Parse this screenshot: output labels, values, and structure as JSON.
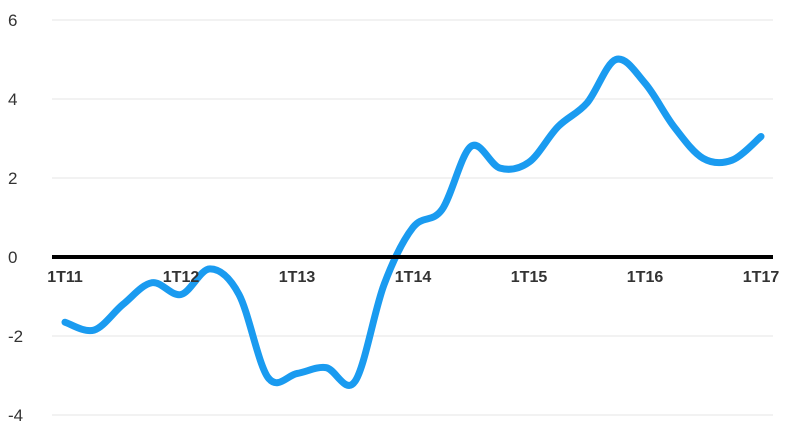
{
  "chart_data": {
    "type": "line",
    "title": "",
    "xlabel": "",
    "ylabel": "",
    "ylim": [
      -4,
      6
    ],
    "yticks": [
      6,
      4,
      2,
      0,
      -2,
      -4
    ],
    "xticks": [
      "1T11",
      "1T12",
      "1T13",
      "1T14",
      "1T15",
      "1T16",
      "1T17"
    ],
    "grid": true,
    "legend": "none",
    "series": [
      {
        "color": "#1a9bf0",
        "x": [
          2011.0,
          2011.25,
          2011.5,
          2011.75,
          2012.0,
          2012.25,
          2012.5,
          2012.75,
          2013.0,
          2013.25,
          2013.5,
          2013.75,
          2014.0,
          2014.25,
          2014.5,
          2014.75,
          2015.0,
          2015.25,
          2015.5,
          2015.75,
          2016.0,
          2016.25,
          2016.5,
          2016.75,
          2017.0
        ],
        "values": [
          -1.65,
          -1.85,
          -1.2,
          -0.65,
          -0.95,
          -0.3,
          -0.95,
          -3.05,
          -2.95,
          -2.8,
          -3.15,
          -0.7,
          0.75,
          1.2,
          2.8,
          2.25,
          2.4,
          3.3,
          3.9,
          5.0,
          4.4,
          3.3,
          2.5,
          2.45,
          3.05
        ]
      }
    ]
  },
  "colors": {
    "line": "#1a9bf0",
    "zero_axis": "#000000",
    "grid": "#e6e6e6",
    "text": "#333333"
  }
}
